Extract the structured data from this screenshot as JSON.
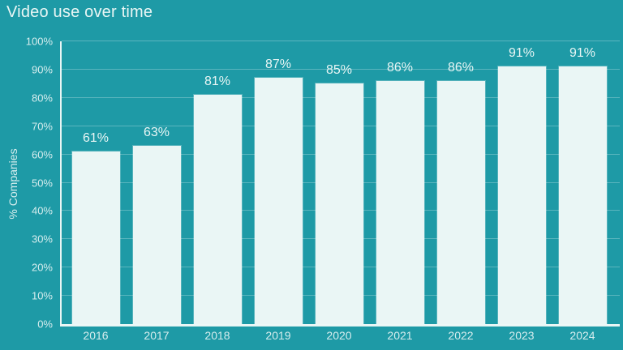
{
  "chart_data": {
    "type": "bar",
    "title": "Video use over time",
    "xlabel": "",
    "ylabel": "% Companies",
    "ylim": [
      0,
      100
    ],
    "grid": "horizontal",
    "legend": "none",
    "categories": [
      "2016",
      "2017",
      "2018",
      "2019",
      "2020",
      "2021",
      "2022",
      "2023",
      "2024"
    ],
    "values": [
      61,
      63,
      81,
      87,
      85,
      86,
      86,
      91,
      91
    ],
    "value_labels": [
      "61%",
      "63%",
      "81%",
      "87%",
      "85%",
      "86%",
      "86%",
      "91%",
      "91%"
    ],
    "ytick_values": [
      0,
      10,
      20,
      30,
      40,
      50,
      60,
      70,
      80,
      90,
      100
    ],
    "ytick_labels": [
      "0%",
      "10%",
      "20%",
      "30%",
      "40%",
      "50%",
      "60%",
      "70%",
      "80%",
      "90%",
      "100%"
    ],
    "colors": {
      "bg": "#1e9aa6",
      "bar": "#eaf6f5",
      "axis": "#e9f6f5",
      "grid": "rgba(233,246,245,0.3)",
      "text": "#e9f6f5",
      "textdim": "#d6edee"
    }
  }
}
